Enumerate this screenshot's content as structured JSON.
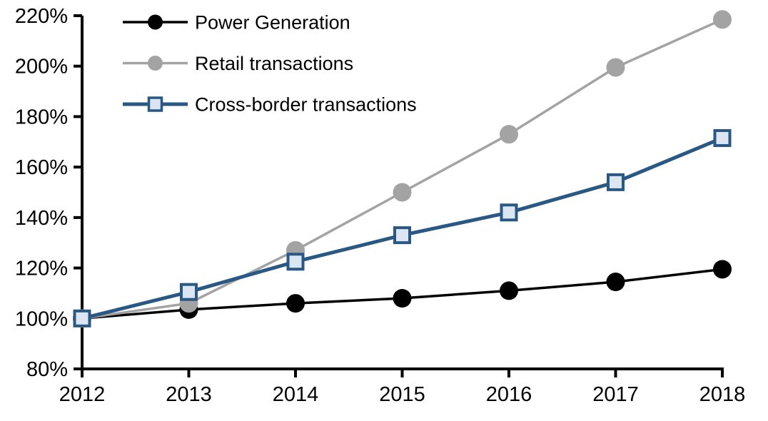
{
  "chart_data": {
    "type": "line",
    "title": "",
    "x_label": "",
    "y_label": "",
    "categories": [
      "2012",
      "2013",
      "2014",
      "2015",
      "2016",
      "2017",
      "2018"
    ],
    "series": [
      {
        "name": "Power Generation",
        "values": [
          100,
          103.5,
          106,
          108,
          111,
          114.5,
          119.5
        ],
        "color": "#000000",
        "marker": "circle",
        "marker_fill": "#000000",
        "line_width": 3.5
      },
      {
        "name": "Retail transactions",
        "values": [
          100,
          106,
          127,
          150,
          173,
          199.5,
          218.5
        ],
        "color": "#a3a3a3",
        "marker": "circle",
        "marker_fill": "#a3a3a3",
        "line_width": 3.5
      },
      {
        "name": "Cross-border transactions",
        "values": [
          100,
          110.5,
          122.5,
          133,
          142,
          154,
          171.5
        ],
        "color": "#2a5885",
        "marker": "square",
        "marker_fill": "#dce6f2",
        "line_width": 5
      }
    ],
    "ylim": [
      80,
      220
    ],
    "y_tick_step": 20,
    "y_tick_labels": [
      "80%",
      "100%",
      "120%",
      "140%",
      "160%",
      "180%",
      "200%",
      "220%"
    ],
    "axis_color": "#000000",
    "grid": false,
    "legend_position": "top-left"
  }
}
